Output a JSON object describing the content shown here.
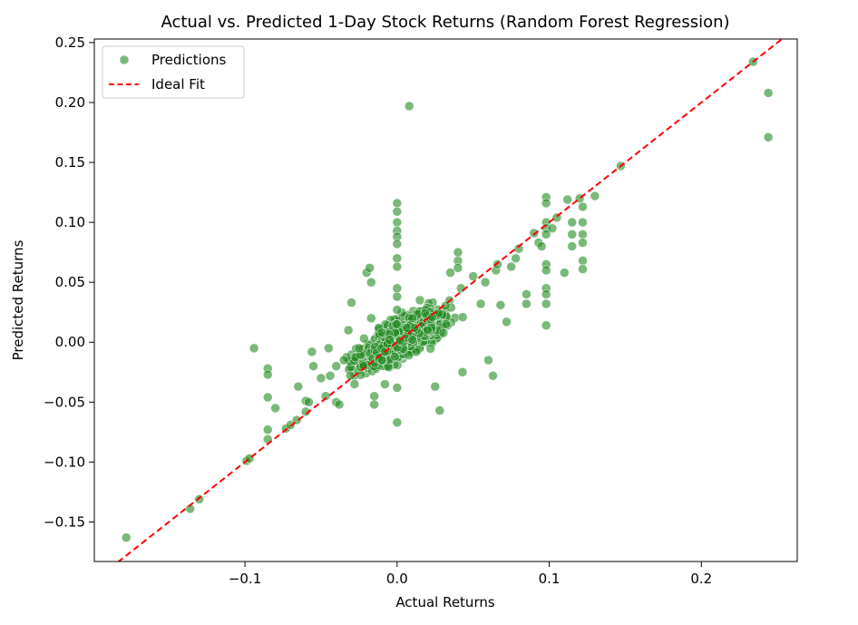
{
  "chart_data": {
    "type": "scatter",
    "title": "Actual vs. Predicted 1-Day Stock Returns (Random Forest Regression)",
    "xlabel": "Actual Returns",
    "ylabel": "Predicted Returns",
    "xlim": [
      -0.199,
      0.263
    ],
    "ylim": [
      -0.183,
      0.253
    ],
    "xticks": [
      -0.1,
      0.0,
      0.1,
      0.2
    ],
    "xtick_labels": [
      "−0.1",
      "0.0",
      "0.1",
      "0.2"
    ],
    "yticks": [
      -0.15,
      -0.1,
      -0.05,
      0.0,
      0.05,
      0.1,
      0.15,
      0.2,
      0.25
    ],
    "ytick_labels": [
      "−0.15",
      "−0.10",
      "−0.05",
      "0.00",
      "0.05",
      "0.10",
      "0.15",
      "0.20",
      "0.25"
    ],
    "grid": false,
    "legend_position": "top-left",
    "series": [
      {
        "name": "Predictions",
        "kind": "scatter",
        "color": "#228b22",
        "points": [
          [
            -0.178,
            -0.163
          ],
          [
            -0.136,
            -0.139
          ],
          [
            -0.13,
            -0.131
          ],
          [
            -0.099,
            -0.099
          ],
          [
            -0.097,
            -0.097
          ],
          [
            -0.094,
            -0.005
          ],
          [
            -0.085,
            -0.022
          ],
          [
            -0.085,
            -0.027
          ],
          [
            -0.085,
            -0.046
          ],
          [
            -0.085,
            -0.073
          ],
          [
            -0.085,
            -0.081
          ],
          [
            -0.08,
            -0.055
          ],
          [
            -0.073,
            -0.072
          ],
          [
            -0.07,
            -0.069
          ],
          [
            -0.066,
            -0.065
          ],
          [
            -0.065,
            -0.037
          ],
          [
            -0.06,
            -0.058
          ],
          [
            -0.06,
            -0.049
          ],
          [
            -0.058,
            -0.05
          ],
          [
            -0.056,
            -0.008
          ],
          [
            -0.055,
            -0.02
          ],
          [
            -0.05,
            -0.03
          ],
          [
            -0.047,
            -0.045
          ],
          [
            -0.045,
            -0.005
          ],
          [
            -0.044,
            -0.028
          ],
          [
            -0.04,
            -0.02
          ],
          [
            -0.04,
            -0.05
          ],
          [
            -0.038,
            -0.052
          ],
          [
            -0.035,
            -0.015
          ],
          [
            -0.032,
            0.01
          ],
          [
            -0.03,
            0.033
          ],
          [
            -0.028,
            -0.035
          ],
          [
            -0.025,
            -0.005
          ],
          [
            -0.022,
            -0.02
          ],
          [
            -0.02,
            0.058
          ],
          [
            -0.018,
            0.062
          ],
          [
            -0.017,
            0.05
          ],
          [
            -0.017,
            0.02
          ],
          [
            -0.015,
            -0.045
          ],
          [
            -0.015,
            -0.052
          ],
          [
            -0.012,
            0.012
          ],
          [
            -0.01,
            -0.015
          ],
          [
            -0.01,
            0.008
          ],
          [
            -0.008,
            -0.035
          ],
          [
            -0.005,
            0.002
          ],
          [
            0.0,
            0.116
          ],
          [
            0.0,
            0.109
          ],
          [
            0.0,
            0.1
          ],
          [
            0.0,
            0.093
          ],
          [
            0.0,
            0.088
          ],
          [
            0.0,
            0.082
          ],
          [
            0.0,
            0.07
          ],
          [
            0.0,
            0.063
          ],
          [
            0.0,
            0.045
          ],
          [
            0.0,
            0.038
          ],
          [
            0.0,
            0.027
          ],
          [
            0.0,
            0.015
          ],
          [
            0.0,
            -0.067
          ],
          [
            0.0,
            -0.038
          ],
          [
            0.008,
            0.197
          ],
          [
            0.01,
            0.02
          ],
          [
            0.015,
            0.035
          ],
          [
            0.02,
            0.01
          ],
          [
            0.025,
            -0.037
          ],
          [
            0.028,
            -0.057
          ],
          [
            0.035,
            0.058
          ],
          [
            0.04,
            0.068
          ],
          [
            0.04,
            0.062
          ],
          [
            0.04,
            0.075
          ],
          [
            0.042,
            0.045
          ],
          [
            0.043,
            -0.025
          ],
          [
            0.05,
            0.055
          ],
          [
            0.055,
            0.032
          ],
          [
            0.058,
            0.05
          ],
          [
            0.06,
            -0.015
          ],
          [
            0.063,
            -0.028
          ],
          [
            0.065,
            0.06
          ],
          [
            0.066,
            0.065
          ],
          [
            0.068,
            0.031
          ],
          [
            0.072,
            0.017
          ],
          [
            0.075,
            0.063
          ],
          [
            0.078,
            0.07
          ],
          [
            0.08,
            0.078
          ],
          [
            0.085,
            0.04
          ],
          [
            0.085,
            0.032
          ],
          [
            0.09,
            0.091
          ],
          [
            0.093,
            0.083
          ],
          [
            0.095,
            0.08
          ],
          [
            0.098,
            0.121
          ],
          [
            0.098,
            0.116
          ],
          [
            0.098,
            0.1
          ],
          [
            0.098,
            0.095
          ],
          [
            0.098,
            0.09
          ],
          [
            0.098,
            0.065
          ],
          [
            0.098,
            0.06
          ],
          [
            0.098,
            0.045
          ],
          [
            0.098,
            0.04
          ],
          [
            0.098,
            0.032
          ],
          [
            0.098,
            0.014
          ],
          [
            0.102,
            0.095
          ],
          [
            0.105,
            0.104
          ],
          [
            0.11,
            0.058
          ],
          [
            0.112,
            0.119
          ],
          [
            0.115,
            0.1
          ],
          [
            0.115,
            0.09
          ],
          [
            0.115,
            0.08
          ],
          [
            0.12,
            0.12
          ],
          [
            0.122,
            0.113
          ],
          [
            0.122,
            0.1
          ],
          [
            0.122,
            0.09
          ],
          [
            0.122,
            0.083
          ],
          [
            0.122,
            0.068
          ],
          [
            0.122,
            0.061
          ],
          [
            0.13,
            0.122
          ],
          [
            0.147,
            0.147
          ],
          [
            0.234,
            0.234
          ],
          [
            0.244,
            0.208
          ],
          [
            0.244,
            0.171
          ]
        ]
      },
      {
        "name": "Ideal Fit",
        "kind": "line",
        "color": "#ff0000",
        "style": "dashed",
        "x": [
          -0.199,
          0.263
        ],
        "y": [
          -0.199,
          0.263
        ]
      }
    ]
  }
}
